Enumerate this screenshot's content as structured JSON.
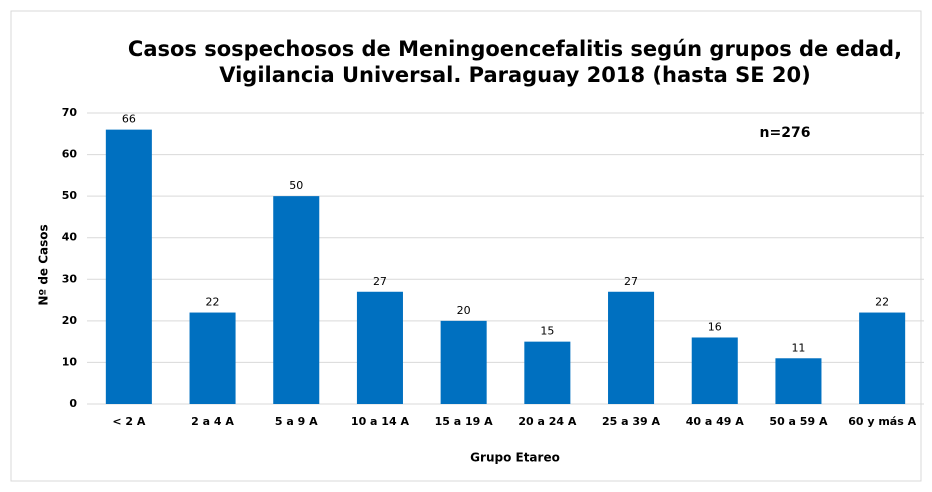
{
  "chart_data": {
    "type": "bar",
    "title": "Casos sospechosos de Meningoencefalitis según grupos de edad,",
    "subtitle": "Vigilancia Universal. Paraguay 2018 (hasta SE 20)",
    "annotation": "n=276",
    "x_label": "Grupo Etareo",
    "y_label": "Nº de Casos",
    "categories": [
      "< 2 A",
      "2 a 4 A",
      "5 a 9 A",
      "10 a 14 A",
      "15 a 19 A",
      "20 a 24 A",
      "25 a 39 A",
      "40 a 49 A",
      "50 a 59 A",
      "60 y más A"
    ],
    "values": [
      66,
      22,
      50,
      27,
      20,
      15,
      27,
      16,
      11,
      22
    ],
    "color": "#0070c0",
    "ylim": [
      0,
      70
    ],
    "yticks": [
      0,
      10,
      20,
      30,
      40,
      50,
      60,
      70
    ],
    "grid": true
  }
}
